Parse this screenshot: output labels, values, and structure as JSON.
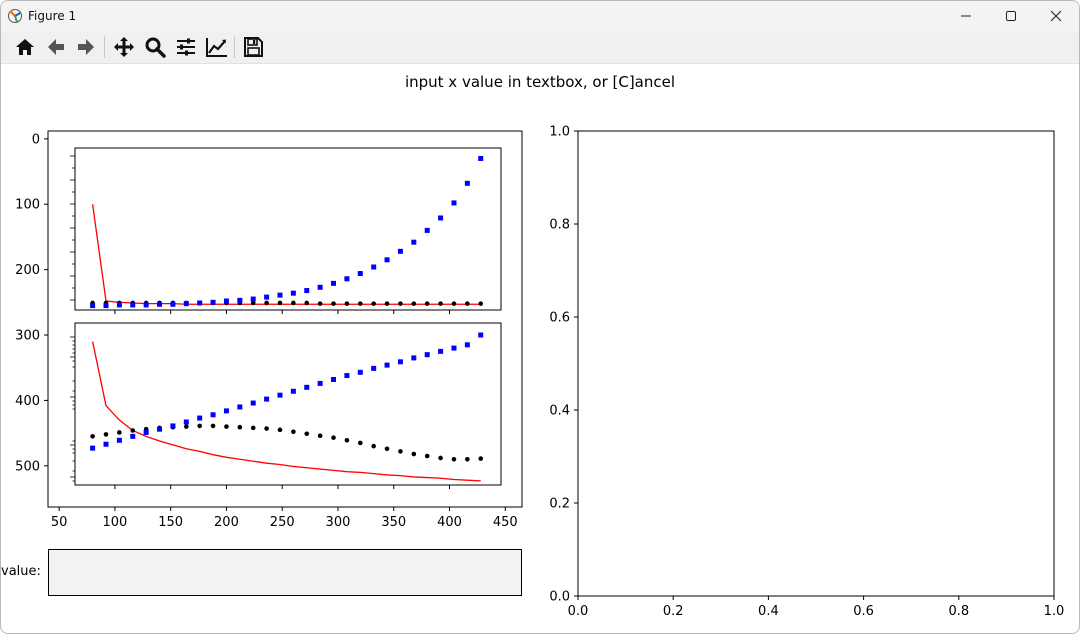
{
  "window": {
    "title": "Figure 1",
    "buttons": [
      "minimize",
      "maximize",
      "close"
    ]
  },
  "toolbar": {
    "items": [
      {
        "name": "home-icon"
      },
      {
        "name": "back-icon"
      },
      {
        "name": "forward-icon"
      },
      {
        "name": "pan-icon"
      },
      {
        "name": "zoom-icon"
      },
      {
        "name": "subplots-icon"
      },
      {
        "name": "edit-axis-icon"
      },
      {
        "name": "save-icon"
      }
    ]
  },
  "figure": {
    "suptitle": "input x value in textbox, or [C]ancel",
    "textbox_label": "value:",
    "textbox_value": ""
  },
  "chart_data": [
    {
      "type": "image",
      "role": "left axes (image display)",
      "xticks": [
        50,
        100,
        150,
        200,
        250,
        300,
        350,
        400,
        450
      ],
      "yticks": [
        0,
        100,
        200,
        300,
        400,
        500
      ],
      "xlim": [
        40,
        465
      ],
      "ylim": [
        563,
        -12
      ],
      "yinverted": true,
      "embedded_plots": [
        {
          "type": "line+scatter",
          "position": "top",
          "x": [
            80,
            92,
            104,
            116,
            128,
            140,
            152,
            164,
            176,
            188,
            200,
            212,
            224,
            236,
            248,
            260,
            272,
            284,
            296,
            308,
            320,
            332,
            344,
            356,
            368,
            380,
            392,
            404,
            416,
            428
          ],
          "series": [
            {
              "style": "red-line",
              "color": "#ff0000",
              "values": [
                100,
                248,
                250,
                251,
                252,
                252,
                252,
                253,
                253,
                253,
                253,
                253,
                253,
                253,
                253,
                253,
                253,
                253,
                253,
                253,
                253,
                253,
                253,
                253,
                253,
                253,
                253,
                253,
                253,
                253
              ]
            },
            {
              "style": "black-dots",
              "color": "#000000",
              "values": [
                251,
                251,
                251,
                251,
                251,
                251,
                251,
                251,
                251,
                251,
                251,
                251,
                251,
                251,
                251,
                251,
                251,
                252,
                252,
                252,
                252,
                252,
                252,
                252,
                252,
                252,
                252,
                252,
                252,
                252
              ]
            },
            {
              "style": "blue-squares",
              "color": "#0000ff",
              "values": [
                255,
                255,
                254,
                254,
                254,
                253,
                253,
                252,
                251,
                250,
                248,
                247,
                245,
                242,
                239,
                236,
                232,
                227,
                221,
                214,
                206,
                196,
                185,
                172,
                158,
                140,
                121,
                98,
                68,
                30
              ]
            }
          ]
        },
        {
          "type": "line+scatter",
          "position": "bottom",
          "x": [
            80,
            92,
            104,
            116,
            128,
            140,
            152,
            164,
            176,
            188,
            200,
            212,
            224,
            236,
            248,
            260,
            272,
            284,
            296,
            308,
            320,
            332,
            344,
            356,
            368,
            380,
            392,
            404,
            416,
            428
          ],
          "series": [
            {
              "style": "red-line",
              "color": "#ff0000",
              "values": [
                310,
                408,
                430,
                446,
                455,
                462,
                468,
                474,
                478,
                483,
                487,
                490,
                493,
                496,
                498,
                501,
                503,
                505,
                507,
                509,
                510,
                512,
                514,
                515,
                517,
                518,
                519,
                521,
                522,
                523
              ]
            },
            {
              "style": "black-dots",
              "color": "#000000",
              "values": [
                455,
                452,
                449,
                446,
                444,
                442,
                441,
                440,
                439,
                439,
                440,
                441,
                442,
                443,
                445,
                448,
                451,
                454,
                457,
                461,
                465,
                470,
                474,
                478,
                482,
                485,
                488,
                490,
                490,
                489
              ]
            },
            {
              "style": "blue-squares",
              "color": "#0000ff",
              "values": [
                473,
                467,
                461,
                455,
                449,
                444,
                439,
                433,
                427,
                422,
                416,
                410,
                404,
                398,
                392,
                386,
                380,
                374,
                368,
                362,
                357,
                351,
                346,
                341,
                335,
                330,
                325,
                320,
                315,
                300
              ]
            }
          ]
        }
      ]
    },
    {
      "type": "empty",
      "role": "right axes",
      "xlim": [
        0.0,
        1.0
      ],
      "ylim": [
        0.0,
        1.0
      ],
      "xticks": [
        0.0,
        0.2,
        0.4,
        0.6,
        0.8,
        1.0
      ],
      "yticks": [
        0.0,
        0.2,
        0.4,
        0.6,
        0.8,
        1.0
      ],
      "ticklabels": [
        "0.0",
        "0.2",
        "0.4",
        "0.6",
        "0.8",
        "1.0"
      ]
    }
  ]
}
